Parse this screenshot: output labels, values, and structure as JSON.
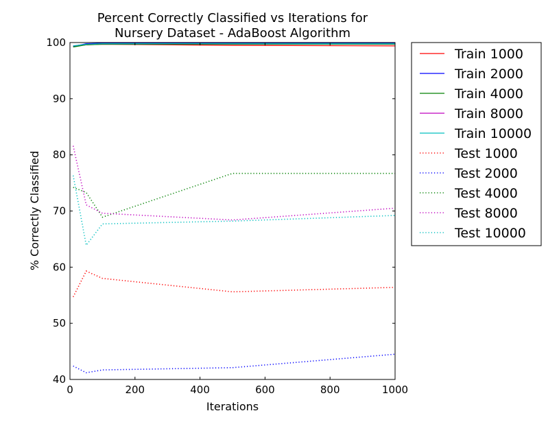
{
  "chart_data": {
    "type": "line",
    "title": [
      "Percent Correctly Classified vs Iterations for",
      "Nursery Dataset - AdaBoost Algorithm"
    ],
    "xlabel": "Iterations",
    "ylabel": "% Correctly Classified",
    "xlim": [
      0,
      1000
    ],
    "ylim": [
      40,
      100
    ],
    "xticks": [
      0,
      200,
      400,
      600,
      800,
      1000
    ],
    "yticks": [
      40,
      50,
      60,
      70,
      80,
      90,
      100
    ],
    "grid": false,
    "legend_position": "outside-right",
    "series": [
      {
        "name": "Train 1000",
        "color": "#ff0000",
        "style": "solid",
        "x": [
          10,
          50,
          100,
          500,
          1000
        ],
        "y": [
          99.3,
          99.6,
          99.7,
          99.5,
          99.4
        ]
      },
      {
        "name": "Train 2000",
        "color": "#0000ff",
        "style": "solid",
        "x": [
          10,
          50,
          100,
          500,
          1000
        ],
        "y": [
          99.3,
          99.8,
          99.9,
          99.9,
          99.9
        ]
      },
      {
        "name": "Train 4000",
        "color": "#008000",
        "style": "solid",
        "x": [
          10,
          50,
          100,
          500,
          1000
        ],
        "y": [
          99.2,
          99.6,
          99.7,
          99.7,
          99.7
        ]
      },
      {
        "name": "Train 8000",
        "color": "#bf00bf",
        "style": "solid",
        "x": [
          10,
          50,
          100,
          500,
          1000
        ],
        "y": [
          99.4,
          99.7,
          99.8,
          99.8,
          99.8
        ]
      },
      {
        "name": "Train 10000",
        "color": "#00bfbf",
        "style": "solid",
        "x": [
          10,
          50,
          100,
          500,
          1000
        ],
        "y": [
          99.4,
          99.7,
          99.8,
          99.8,
          99.8
        ]
      },
      {
        "name": "Test 1000",
        "color": "#ff0000",
        "style": "dotted",
        "x": [
          10,
          50,
          100,
          500,
          1000
        ],
        "y": [
          54.7,
          59.3,
          58.0,
          55.6,
          56.4
        ]
      },
      {
        "name": "Test 2000",
        "color": "#0000ff",
        "style": "dotted",
        "x": [
          10,
          50,
          100,
          500,
          1000
        ],
        "y": [
          42.4,
          41.2,
          41.7,
          42.1,
          44.5
        ]
      },
      {
        "name": "Test 4000",
        "color": "#008000",
        "style": "dotted",
        "x": [
          10,
          50,
          100,
          500,
          1000
        ],
        "y": [
          74.2,
          73.3,
          68.9,
          76.7,
          76.7
        ]
      },
      {
        "name": "Test 8000",
        "color": "#bf00bf",
        "style": "dotted",
        "x": [
          10,
          50,
          100,
          500,
          1000
        ],
        "y": [
          81.6,
          71.1,
          69.6,
          68.4,
          70.5
        ]
      },
      {
        "name": "Test 10000",
        "color": "#00bfbf",
        "style": "dotted",
        "x": [
          10,
          50,
          100,
          500,
          1000
        ],
        "y": [
          76.3,
          63.9,
          67.7,
          68.2,
          69.2
        ]
      }
    ]
  }
}
